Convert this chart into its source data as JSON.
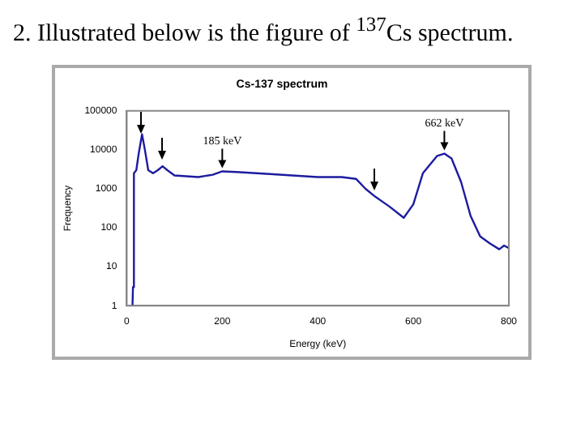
{
  "chart_data": {
    "type": "line",
    "title": "Cs-137 spectrum",
    "xlabel": "Energy (keV)",
    "ylabel": "Frequency",
    "x": [
      12,
      13,
      15,
      20,
      25,
      32,
      38,
      45,
      55,
      65,
      75,
      85,
      100,
      150,
      180,
      200,
      230,
      300,
      400,
      450,
      480,
      500,
      520,
      550,
      580,
      600,
      620,
      650,
      665,
      680,
      700,
      720,
      740,
      760,
      780,
      790,
      800
    ],
    "series": [
      {
        "color": "#1c1ca0",
        "values": [
          1,
          3,
          2500,
          3000,
          8000,
          25000,
          10000,
          3000,
          2500,
          3000,
          3800,
          3000,
          2200,
          2000,
          2300,
          2800,
          2700,
          2400,
          2000,
          2000,
          1800,
          1000,
          630,
          350,
          180,
          400,
          2500,
          7000,
          8000,
          6000,
          1500,
          200,
          60,
          40,
          28,
          35,
          30
        ]
      }
    ],
    "xlim": [
      0,
      800
    ],
    "xticks": [
      0,
      200,
      400,
      600,
      800
    ],
    "ylim": [
      1,
      100000
    ],
    "yticks": [
      1,
      10,
      100,
      1000,
      10000,
      100000
    ],
    "log": "y",
    "grid": false,
    "legend": false,
    "marker": "none",
    "line_style": "solid",
    "annotations": [
      "2. Illustrated below is the figure of $^{137}$Cs spectrum.",
      {
        "text": "185 keV",
        "x": 200,
        "y": 2800
      },
      {
        "text": "662 keV",
        "x": 665,
        "y": 8000
      }
    ]
  }
}
